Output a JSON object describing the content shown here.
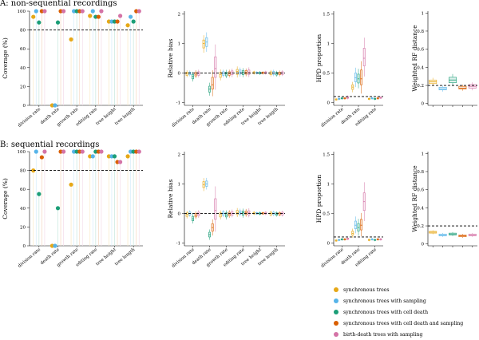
{
  "sections": [
    {
      "title": "A: non-sequential recordings"
    },
    {
      "title": "B: sequential recordings"
    }
  ],
  "method_colors": [
    "#E6A817",
    "#56B4E9",
    "#1B9E77",
    "#D95F02",
    "#D473A6"
  ],
  "legend": {
    "items": [
      {
        "label": "synchronous trees",
        "color": "#E6A817"
      },
      {
        "label": "synchronous trees with sampling",
        "color": "#56B4E9"
      },
      {
        "label": "synchronous trees with cell death",
        "color": "#1B9E77"
      },
      {
        "label": "synchronous trees with cell death and sampling",
        "color": "#D95F02"
      },
      {
        "label": "birth-death trees with sampling",
        "color": "#D473A6"
      }
    ]
  },
  "chart_data": [
    {
      "type": "scatter",
      "section": "A",
      "panel": "coverage",
      "ylabel": "Coverage (%)",
      "ylim": [
        0,
        100
      ],
      "yticks": [
        0,
        20,
        40,
        60,
        80,
        100
      ],
      "reference_line": 80,
      "categories": [
        "division rate",
        "death rate",
        "growth rate",
        "editing rate",
        "tree height",
        "tree length"
      ],
      "series": [
        {
          "name": "synchronous trees",
          "values": [
            94,
            0,
            70,
            95,
            89,
            85
          ]
        },
        {
          "name": "synchronous trees with sampling",
          "values": [
            100,
            0,
            100,
            100,
            89,
            94
          ]
        },
        {
          "name": "synchronous trees with cell death",
          "values": [
            88,
            88,
            100,
            94,
            89,
            89
          ]
        },
        {
          "name": "synchronous trees with cell death and sampling",
          "values": [
            100,
            100,
            100,
            94,
            89,
            100
          ]
        },
        {
          "name": "birth-death trees with sampling",
          "values": [
            100,
            100,
            100,
            100,
            95,
            100
          ]
        }
      ]
    },
    {
      "type": "box",
      "section": "A",
      "panel": "bias",
      "ylabel": "Relative bias",
      "ylim": [
        -1.1,
        2.1
      ],
      "yticks": [
        -1,
        0,
        1,
        2
      ],
      "reference_line": 0,
      "categories": [
        "division rate",
        "death rate",
        "growth rate",
        "editing rate",
        "tree height",
        "tree length"
      ],
      "series": [
        {
          "name": "synchronous trees",
          "values": [
            [
              -0.08,
              -0.02,
              0.03
            ],
            [
              0.85,
              1.0,
              1.12
            ],
            [
              -0.15,
              -0.05,
              0.02
            ],
            [
              -0.05,
              0.05,
              0.12
            ],
            [
              -0.02,
              0.01,
              0.04
            ],
            [
              -0.06,
              -0.01,
              0.04
            ]
          ]
        },
        {
          "name": "synchronous trees with sampling",
          "values": [
            [
              -0.06,
              -0.01,
              0.03
            ],
            [
              0.9,
              1.05,
              1.2
            ],
            [
              -0.08,
              -0.02,
              0.04
            ],
            [
              -0.04,
              0.03,
              0.1
            ],
            [
              -0.02,
              0.01,
              0.03
            ],
            [
              -0.05,
              0.0,
              0.05
            ]
          ]
        },
        {
          "name": "synchronous trees with cell death",
          "values": [
            [
              -0.2,
              -0.12,
              -0.05
            ],
            [
              -0.65,
              -0.55,
              -0.45
            ],
            [
              -0.1,
              -0.03,
              0.03
            ],
            [
              -0.06,
              0.02,
              0.08
            ],
            [
              -0.03,
              0.0,
              0.03
            ],
            [
              -0.07,
              -0.02,
              0.02
            ]
          ]
        },
        {
          "name": "synchronous trees with cell death and sampling",
          "values": [
            [
              -0.1,
              -0.04,
              0.02
            ],
            [
              -0.55,
              -0.4,
              -0.15
            ],
            [
              -0.08,
              -0.02,
              0.04
            ],
            [
              -0.04,
              0.02,
              0.08
            ],
            [
              -0.02,
              0.01,
              0.03
            ],
            [
              -0.06,
              -0.01,
              0.03
            ]
          ]
        },
        {
          "name": "birth-death trees with sampling",
          "values": [
            [
              -0.08,
              -0.02,
              0.04
            ],
            [
              -0.15,
              0.15,
              0.55
            ],
            [
              -0.06,
              0.01,
              0.07
            ],
            [
              -0.05,
              0.03,
              0.1
            ],
            [
              -0.02,
              0.01,
              0.04
            ],
            [
              -0.05,
              0.0,
              0.04
            ]
          ]
        }
      ]
    },
    {
      "type": "box",
      "section": "A",
      "panel": "hpd",
      "ylabel": "HPD proportion",
      "ylim": [
        -0.05,
        1.55
      ],
      "yticks": [
        0.0,
        0.5,
        1.0,
        1.5
      ],
      "reference_line": 0.1,
      "categories": [
        "division rate",
        "death rate",
        "editing rate"
      ],
      "series": [
        {
          "name": "synchronous trees",
          "values": [
            [
              0.04,
              0.05,
              0.06
            ],
            [
              0.22,
              0.26,
              0.3
            ],
            [
              0.05,
              0.06,
              0.07
            ]
          ]
        },
        {
          "name": "synchronous trees with sampling",
          "values": [
            [
              0.05,
              0.06,
              0.07
            ],
            [
              0.35,
              0.42,
              0.5
            ],
            [
              0.06,
              0.07,
              0.08
            ]
          ]
        },
        {
          "name": "synchronous trees with cell death",
          "values": [
            [
              0.06,
              0.07,
              0.08
            ],
            [
              0.33,
              0.4,
              0.48
            ],
            [
              0.05,
              0.06,
              0.07
            ]
          ]
        },
        {
          "name": "synchronous trees with cell death and sampling",
          "values": [
            [
              0.06,
              0.07,
              0.08
            ],
            [
              0.3,
              0.4,
              0.55
            ],
            [
              0.06,
              0.07,
              0.08
            ]
          ]
        },
        {
          "name": "birth-death trees with sampling",
          "values": [
            [
              0.07,
              0.08,
              0.1
            ],
            [
              0.62,
              0.75,
              0.92
            ],
            [
              0.07,
              0.08,
              0.09
            ]
          ]
        }
      ]
    },
    {
      "type": "box",
      "section": "A",
      "panel": "rf",
      "ylabel": "Weighted RF distance",
      "ylim": [
        -0.02,
        1.02
      ],
      "yticks": [
        0.0,
        0.2,
        0.4,
        0.6,
        0.8,
        1.0
      ],
      "reference_line": 0.2,
      "categories": [
        "",
        "",
        "",
        "",
        ""
      ],
      "series": [
        {
          "name": "synchronous trees",
          "values": [
            [
              0.22,
              0.24,
              0.26
            ]
          ]
        },
        {
          "name": "synchronous trees with sampling",
          "values": [
            [
              0.15,
              0.16,
              0.18
            ]
          ]
        },
        {
          "name": "synchronous trees with cell death",
          "values": [
            [
              0.23,
              0.26,
              0.29
            ]
          ]
        },
        {
          "name": "synchronous trees with cell death and sampling",
          "values": [
            [
              0.16,
              0.17,
              0.19
            ]
          ]
        },
        {
          "name": "birth-death trees with sampling",
          "values": [
            [
              0.17,
              0.19,
              0.21
            ]
          ]
        }
      ]
    },
    {
      "type": "scatter",
      "section": "B",
      "panel": "coverage",
      "ylabel": "Coverage (%)",
      "ylim": [
        0,
        100
      ],
      "yticks": [
        0,
        20,
        40,
        60,
        80,
        100
      ],
      "reference_line": 80,
      "categories": [
        "division rate",
        "death rate",
        "growth rate",
        "editing rate",
        "tree height",
        "tree length"
      ],
      "series": [
        {
          "name": "synchronous trees",
          "values": [
            80,
            0,
            65,
            95,
            95,
            95
          ]
        },
        {
          "name": "synchronous trees with sampling",
          "values": [
            100,
            0,
            100,
            95,
            95,
            100
          ]
        },
        {
          "name": "synchronous trees with cell death",
          "values": [
            55,
            40,
            100,
            100,
            95,
            100
          ]
        },
        {
          "name": "synchronous trees with cell death and sampling",
          "values": [
            94,
            100,
            100,
            100,
            89,
            100
          ]
        },
        {
          "name": "birth-death trees with sampling",
          "values": [
            100,
            100,
            100,
            100,
            89,
            100
          ]
        }
      ]
    },
    {
      "type": "box",
      "section": "B",
      "panel": "bias",
      "ylabel": "Relative bias",
      "ylim": [
        -1.1,
        2.1
      ],
      "yticks": [
        -1,
        0,
        1,
        2
      ],
      "reference_line": 0,
      "categories": [
        "division rate",
        "death rate",
        "growth rate",
        "editing rate",
        "tree height",
        "tree length"
      ],
      "series": [
        {
          "name": "synchronous trees",
          "values": [
            [
              -0.1,
              -0.03,
              0.02
            ],
            [
              0.88,
              0.98,
              1.08
            ],
            [
              -0.12,
              -0.04,
              0.02
            ],
            [
              -0.04,
              0.03,
              0.1
            ],
            [
              -0.02,
              0.01,
              0.04
            ],
            [
              -0.05,
              0.0,
              0.04
            ]
          ]
        },
        {
          "name": "synchronous trees with sampling",
          "values": [
            [
              -0.05,
              0.0,
              0.05
            ],
            [
              0.92,
              1.0,
              1.1
            ],
            [
              -0.06,
              0.0,
              0.05
            ],
            [
              -0.03,
              0.03,
              0.09
            ],
            [
              -0.02,
              0.01,
              0.03
            ],
            [
              -0.04,
              0.0,
              0.04
            ]
          ]
        },
        {
          "name": "synchronous trees with cell death",
          "values": [
            [
              -0.25,
              -0.18,
              -0.1
            ],
            [
              -0.8,
              -0.72,
              -0.64
            ],
            [
              -0.12,
              -0.05,
              0.02
            ],
            [
              -0.06,
              0.02,
              0.08
            ],
            [
              -0.03,
              0.0,
              0.03
            ],
            [
              -0.06,
              -0.02,
              0.02
            ]
          ]
        },
        {
          "name": "synchronous trees with cell death and sampling",
          "values": [
            [
              -0.12,
              -0.06,
              0.0
            ],
            [
              -0.6,
              -0.48,
              -0.35
            ],
            [
              -0.08,
              -0.02,
              0.04
            ],
            [
              -0.04,
              0.02,
              0.08
            ],
            [
              -0.02,
              0.01,
              0.03
            ],
            [
              -0.05,
              -0.01,
              0.03
            ]
          ]
        },
        {
          "name": "birth-death trees with sampling",
          "values": [
            [
              -0.08,
              -0.02,
              0.04
            ],
            [
              -0.2,
              0.1,
              0.5
            ],
            [
              -0.06,
              0.0,
              0.06
            ],
            [
              -0.05,
              0.02,
              0.09
            ],
            [
              -0.02,
              0.01,
              0.04
            ],
            [
              -0.05,
              0.0,
              0.04
            ]
          ]
        }
      ]
    },
    {
      "type": "box",
      "section": "B",
      "panel": "hpd",
      "ylabel": "HPD proportion",
      "ylim": [
        -0.05,
        1.55
      ],
      "yticks": [
        0.0,
        0.5,
        1.0,
        1.5
      ],
      "reference_line": 0.1,
      "categories": [
        "division rate",
        "death rate",
        "editing rate"
      ],
      "series": [
        {
          "name": "synchronous trees",
          "values": [
            [
              0.03,
              0.04,
              0.05
            ],
            [
              0.13,
              0.16,
              0.2
            ],
            [
              0.04,
              0.05,
              0.06
            ]
          ]
        },
        {
          "name": "synchronous trees with sampling",
          "values": [
            [
              0.04,
              0.05,
              0.06
            ],
            [
              0.24,
              0.3,
              0.37
            ],
            [
              0.05,
              0.06,
              0.07
            ]
          ]
        },
        {
          "name": "synchronous trees with cell death",
          "values": [
            [
              0.05,
              0.06,
              0.07
            ],
            [
              0.2,
              0.26,
              0.33
            ],
            [
              0.04,
              0.05,
              0.06
            ]
          ]
        },
        {
          "name": "synchronous trees with cell death and sampling",
          "values": [
            [
              0.05,
              0.06,
              0.07
            ],
            [
              0.22,
              0.3,
              0.4
            ],
            [
              0.05,
              0.06,
              0.07
            ]
          ]
        },
        {
          "name": "birth-death trees with sampling",
          "values": [
            [
              0.06,
              0.07,
              0.08
            ],
            [
              0.55,
              0.7,
              0.85
            ],
            [
              0.05,
              0.06,
              0.07
            ]
          ]
        }
      ]
    },
    {
      "type": "box",
      "section": "B",
      "panel": "rf",
      "ylabel": "Weighted RF distance",
      "ylim": [
        -0.02,
        1.02
      ],
      "yticks": [
        0.0,
        0.2,
        0.4,
        0.6,
        0.8,
        1.0
      ],
      "reference_line": 0.2,
      "categories": [
        "",
        "",
        "",
        "",
        ""
      ],
      "series": [
        {
          "name": "synchronous trees",
          "values": [
            [
              0.12,
              0.13,
              0.14
            ]
          ]
        },
        {
          "name": "synchronous trees with sampling",
          "values": [
            [
              0.09,
              0.1,
              0.11
            ]
          ]
        },
        {
          "name": "synchronous trees with cell death",
          "values": [
            [
              0.1,
              0.11,
              0.12
            ]
          ]
        },
        {
          "name": "synchronous trees with cell death and sampling",
          "values": [
            [
              0.08,
              0.09,
              0.1
            ]
          ]
        },
        {
          "name": "birth-death trees with sampling",
          "values": [
            [
              0.09,
              0.1,
              0.11
            ]
          ]
        }
      ]
    }
  ]
}
